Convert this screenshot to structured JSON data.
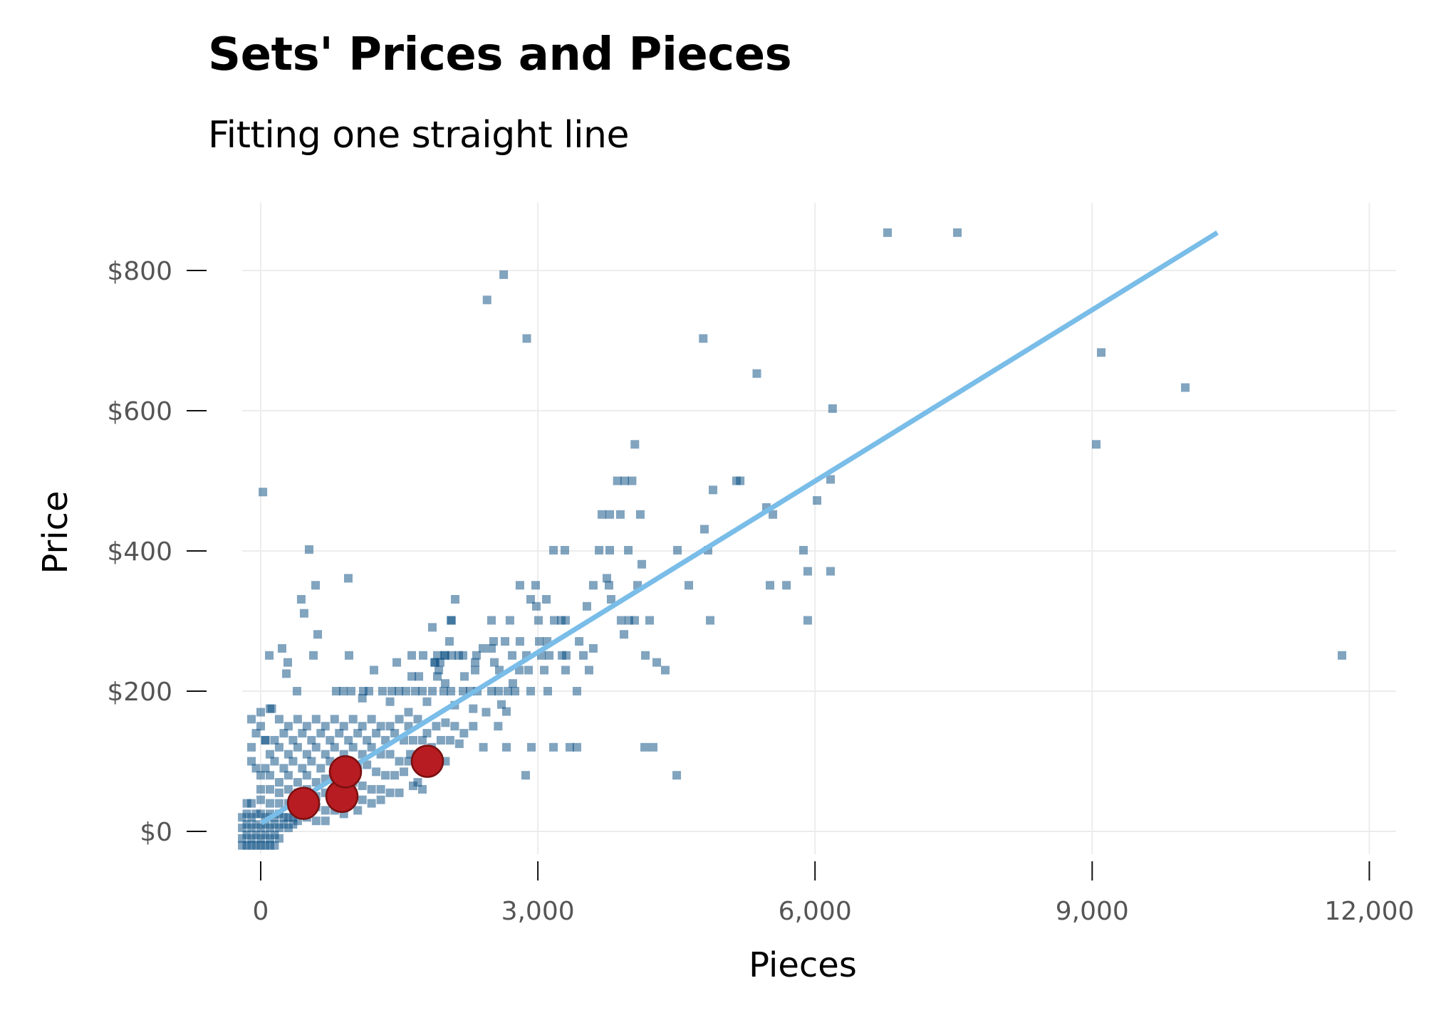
{
  "title": "Sets' Prices and Pieces",
  "subtitle": "Fitting one straight line",
  "colors": {
    "points": "#03497f",
    "fit_line": "#79bde8",
    "highlight_fill": "#b71c22",
    "highlight_stroke": "#7a1010",
    "grid": "#ececec",
    "tick_text": "#555555"
  },
  "chart_data": {
    "type": "scatter",
    "title": "Sets' Prices and Pieces",
    "subtitle": "Fitting one straight line",
    "xlabel": "Pieces",
    "ylabel": "Price",
    "xlim": [
      -200,
      12500
    ],
    "ylim": [
      -40,
      900
    ],
    "grid": true,
    "x_ticks": [
      0,
      3000,
      6000,
      9000,
      12000
    ],
    "x_tick_labels": [
      "0",
      "3,000",
      "6,000",
      "9,000",
      "12,000"
    ],
    "y_ticks": [
      0,
      200,
      400,
      600,
      800
    ],
    "y_tick_labels": [
      "$0",
      "$200",
      "$400",
      "$600",
      "$800"
    ],
    "fit_line": {
      "name": "linear fit",
      "x": [
        8,
        10355
      ],
      "y": [
        12,
        854
      ]
    },
    "highlighted": {
      "name": "highlighted sets",
      "points": [
        [
          463,
          40
        ],
        [
          879,
          50
        ],
        [
          917,
          85
        ],
        [
          1804,
          100
        ]
      ]
    },
    "sets": {
      "name": "sets",
      "points": [
        [
          6785,
          854
        ],
        [
          7541,
          854
        ],
        [
          2630,
          794
        ],
        [
          2450,
          758
        ],
        [
          2880,
          703
        ],
        [
          4790,
          703
        ],
        [
          5370,
          653
        ],
        [
          6190,
          603
        ],
        [
          9098,
          683
        ],
        [
          10008,
          633
        ],
        [
          9044,
          552
        ],
        [
          11704,
          251
        ],
        [
          4050,
          552
        ],
        [
          3860,
          500
        ],
        [
          3940,
          500
        ],
        [
          4020,
          500
        ],
        [
          5150,
          500
        ],
        [
          5190,
          500
        ],
        [
          6168,
          502
        ],
        [
          4896,
          487
        ],
        [
          6022,
          472
        ],
        [
          24,
          484
        ],
        [
          3693,
          452
        ],
        [
          3778,
          452
        ],
        [
          3893,
          452
        ],
        [
          4109,
          452
        ],
        [
          5474,
          462
        ],
        [
          5544,
          452
        ],
        [
          4803,
          431
        ],
        [
          3169,
          401
        ],
        [
          3292,
          401
        ],
        [
          3663,
          401
        ],
        [
          3778,
          401
        ],
        [
          3979,
          401
        ],
        [
          4511,
          401
        ],
        [
          4842,
          401
        ],
        [
          5875,
          401
        ],
        [
          524,
          402
        ],
        [
          4125,
          381
        ],
        [
          5921,
          371
        ],
        [
          6168,
          371
        ],
        [
          3747,
          361
        ],
        [
          948,
          361
        ],
        [
          2806,
          351
        ],
        [
          2976,
          351
        ],
        [
          3600,
          351
        ],
        [
          3770,
          351
        ],
        [
          4079,
          351
        ],
        [
          4634,
          351
        ],
        [
          5513,
          351
        ],
        [
          5691,
          351
        ],
        [
          594,
          351
        ],
        [
          2105,
          331
        ],
        [
          2922,
          331
        ],
        [
          3092,
          331
        ],
        [
          3793,
          331
        ],
        [
          439,
          331
        ],
        [
          2984,
          321
        ],
        [
          3531,
          321
        ],
        [
          470,
          311
        ],
        [
          1858,
          291
        ],
        [
          2066,
          301
        ],
        [
          2498,
          301
        ],
        [
          2698,
          301
        ],
        [
          3007,
          301
        ],
        [
          3177,
          301
        ],
        [
          3254,
          301
        ],
        [
          3300,
          301
        ],
        [
          3901,
          301
        ],
        [
          3986,
          301
        ],
        [
          4048,
          301
        ],
        [
          4210,
          301
        ],
        [
          4865,
          301
        ],
        [
          5921,
          301
        ],
        [
          2059,
          301
        ],
        [
          3932,
          281
        ],
        [
          617,
          281
        ],
        [
          2043,
          271
        ],
        [
          2521,
          271
        ],
        [
          2645,
          271
        ],
        [
          2806,
          271
        ],
        [
          3015,
          271
        ],
        [
          3100,
          271
        ],
        [
          3447,
          271
        ],
        [
          3600,
          261
        ],
        [
          2405,
          261
        ],
        [
          2498,
          261
        ],
        [
          231,
          261
        ],
        [
          1912,
          251
        ],
        [
          1989,
          251
        ],
        [
          2066,
          251
        ],
        [
          2143,
          251
        ],
        [
          2190,
          251
        ],
        [
          2336,
          251
        ],
        [
          2722,
          251
        ],
        [
          2876,
          251
        ],
        [
          3038,
          251
        ],
        [
          3123,
          251
        ],
        [
          3262,
          251
        ],
        [
          3308,
          251
        ],
        [
          3493,
          251
        ],
        [
          4164,
          251
        ],
        [
          93,
          251
        ],
        [
          571,
          251
        ],
        [
          956,
          251
        ],
        [
          1635,
          251
        ],
        [
          1758,
          251
        ],
        [
          1997,
          251
        ],
        [
          1881,
          241
        ],
        [
          1943,
          241
        ],
        [
          2321,
          241
        ],
        [
          2529,
          241
        ],
        [
          4287,
          241
        ],
        [
          293,
          241
        ],
        [
          1473,
          241
        ],
        [
          1889,
          241
        ],
        [
          1928,
          230
        ],
        [
          2321,
          230
        ],
        [
          2583,
          230
        ],
        [
          2799,
          230
        ],
        [
          2899,
          230
        ],
        [
          3069,
          230
        ],
        [
          3300,
          230
        ],
        [
          3554,
          230
        ],
        [
          4379,
          230
        ],
        [
          1226,
          230
        ],
        [
          278,
          225
        ],
        [
          1635,
          221
        ],
        [
          1712,
          221
        ],
        [
          1912,
          221
        ],
        [
          2205,
          221
        ],
        [
          1997,
          211
        ],
        [
          2729,
          211
        ],
        [
          393,
          200
        ],
        [
          817,
          200
        ],
        [
          894,
          200
        ],
        [
          979,
          200
        ],
        [
          1110,
          200
        ],
        [
          1172,
          200
        ],
        [
          1318,
          200
        ],
        [
          1419,
          200
        ],
        [
          1496,
          200
        ],
        [
          1573,
          200
        ],
        [
          1673,
          200
        ],
        [
          1750,
          200
        ],
        [
          1858,
          200
        ],
        [
          1981,
          200
        ],
        [
          2059,
          200
        ],
        [
          2190,
          200
        ],
        [
          2267,
          200
        ],
        [
          2344,
          200
        ],
        [
          2498,
          200
        ],
        [
          2575,
          200
        ],
        [
          2675,
          200
        ],
        [
          2753,
          200
        ],
        [
          2922,
          200
        ],
        [
          3107,
          200
        ],
        [
          3423,
          200
        ],
        [
          2606,
          181
        ],
        [
          2660,
          171
        ],
        [
          1100,
          190
        ],
        [
          1400,
          185
        ],
        [
          1800,
          185
        ],
        [
          2100,
          180
        ],
        [
          2300,
          175
        ],
        [
          1600,
          170
        ],
        [
          2660,
          120
        ],
        [
          2930,
          120
        ],
        [
          3169,
          120
        ],
        [
          3346,
          120
        ],
        [
          3423,
          120
        ],
        [
          4156,
          120
        ],
        [
          4248,
          120
        ],
        [
          2868,
          80
        ],
        [
          4503,
          80
        ],
        [
          1860,
          90
        ],
        [
          1620,
          110
        ],
        [
          2410,
          120
        ],
        [
          2570,
          150
        ],
        [
          2440,
          170
        ],
        [
          100,
          175
        ],
        [
          120,
          175
        ],
        [
          200,
          160
        ],
        [
          300,
          150
        ],
        [
          400,
          160
        ],
        [
          500,
          150
        ],
        [
          600,
          160
        ],
        [
          700,
          150
        ],
        [
          800,
          160
        ],
        [
          900,
          150
        ],
        [
          1000,
          160
        ],
        [
          1100,
          150
        ],
        [
          1200,
          160
        ],
        [
          1300,
          150
        ],
        [
          1400,
          150
        ],
        [
          1500,
          160
        ],
        [
          1600,
          150
        ],
        [
          1700,
          160
        ],
        [
          1800,
          140
        ],
        [
          1900,
          150
        ],
        [
          2000,
          155
        ],
        [
          2100,
          150
        ],
        [
          2200,
          140
        ],
        [
          2300,
          150
        ],
        [
          50,
          130
        ],
        [
          150,
          130
        ],
        [
          250,
          140
        ],
        [
          350,
          130
        ],
        [
          450,
          140
        ],
        [
          550,
          130
        ],
        [
          650,
          140
        ],
        [
          750,
          130
        ],
        [
          850,
          140
        ],
        [
          950,
          130
        ],
        [
          1050,
          140
        ],
        [
          1150,
          130
        ],
        [
          1250,
          140
        ],
        [
          1350,
          130
        ],
        [
          1450,
          140
        ],
        [
          1550,
          130
        ],
        [
          1650,
          130
        ],
        [
          1750,
          130
        ],
        [
          1850,
          120
        ],
        [
          1950,
          130
        ],
        [
          2050,
          130
        ],
        [
          2150,
          125
        ],
        [
          100,
          110
        ],
        [
          200,
          120
        ],
        [
          300,
          110
        ],
        [
          400,
          120
        ],
        [
          500,
          110
        ],
        [
          600,
          120
        ],
        [
          700,
          110
        ],
        [
          800,
          120
        ],
        [
          900,
          110
        ],
        [
          1000,
          120
        ],
        [
          1100,
          110
        ],
        [
          1200,
          120
        ],
        [
          1300,
          110
        ],
        [
          1400,
          110
        ],
        [
          1500,
          100
        ],
        [
          1600,
          100
        ],
        [
          1700,
          100
        ],
        [
          1800,
          110
        ],
        [
          1900,
          105
        ],
        [
          2000,
          100
        ],
        [
          50,
          90
        ],
        [
          150,
          100
        ],
        [
          250,
          90
        ],
        [
          350,
          100
        ],
        [
          450,
          90
        ],
        [
          550,
          100
        ],
        [
          650,
          90
        ],
        [
          750,
          100
        ],
        [
          850,
          90
        ],
        [
          950,
          100
        ],
        [
          1050,
          90
        ],
        [
          1150,
          95
        ],
        [
          1250,
          85
        ],
        [
          1350,
          80
        ],
        [
          1450,
          80
        ],
        [
          1550,
          85
        ],
        [
          1650,
          65
        ],
        [
          1750,
          60
        ],
        [
          1700,
          70
        ],
        [
          0,
          80
        ],
        [
          100,
          80
        ],
        [
          200,
          70
        ],
        [
          300,
          80
        ],
        [
          400,
          70
        ],
        [
          500,
          80
        ],
        [
          600,
          70
        ],
        [
          700,
          75
        ],
        [
          800,
          70
        ],
        [
          900,
          70
        ],
        [
          1000,
          70
        ],
        [
          1100,
          65
        ],
        [
          1200,
          60
        ],
        [
          1300,
          60
        ],
        [
          1400,
          55
        ],
        [
          1500,
          55
        ],
        [
          0,
          60
        ],
        [
          100,
          60
        ],
        [
          200,
          55
        ],
        [
          300,
          60
        ],
        [
          400,
          55
        ],
        [
          500,
          60
        ],
        [
          600,
          50
        ],
        [
          700,
          55
        ],
        [
          800,
          50
        ],
        [
          900,
          45
        ],
        [
          1000,
          50
        ],
        [
          1100,
          45
        ],
        [
          1200,
          40
        ],
        [
          1300,
          45
        ],
        [
          1050,
          30
        ],
        [
          -150,
          40
        ],
        [
          -100,
          40
        ],
        [
          0,
          45
        ],
        [
          100,
          40
        ],
        [
          200,
          40
        ],
        [
          300,
          40
        ],
        [
          400,
          35
        ],
        [
          500,
          40
        ],
        [
          600,
          35
        ],
        [
          700,
          30
        ],
        [
          800,
          30
        ],
        [
          900,
          25
        ],
        [
          -200,
          20
        ],
        [
          -150,
          25
        ],
        [
          -100,
          20
        ],
        [
          -50,
          25
        ],
        [
          0,
          25
        ],
        [
          50,
          20
        ],
        [
          100,
          25
        ],
        [
          150,
          20
        ],
        [
          200,
          25
        ],
        [
          250,
          20
        ],
        [
          300,
          20
        ],
        [
          350,
          20
        ],
        [
          400,
          15
        ],
        [
          500,
          20
        ],
        [
          600,
          15
        ],
        [
          700,
          15
        ],
        [
          -200,
          5
        ],
        [
          -150,
          10
        ],
        [
          -100,
          5
        ],
        [
          -50,
          10
        ],
        [
          0,
          5
        ],
        [
          50,
          10
        ],
        [
          100,
          5
        ],
        [
          150,
          10
        ],
        [
          200,
          5
        ],
        [
          250,
          10
        ],
        [
          300,
          5
        ],
        [
          350,
          10
        ],
        [
          -200,
          -10
        ],
        [
          -150,
          -5
        ],
        [
          -100,
          -10
        ],
        [
          -50,
          -5
        ],
        [
          0,
          -10
        ],
        [
          50,
          -5
        ],
        [
          100,
          -10
        ],
        [
          150,
          -5
        ],
        [
          200,
          -10
        ],
        [
          -200,
          -20
        ],
        [
          -150,
          -20
        ],
        [
          -100,
          -20
        ],
        [
          -50,
          -20
        ],
        [
          0,
          -20
        ],
        [
          50,
          -20
        ],
        [
          100,
          -20
        ],
        [
          150,
          -20
        ],
        [
          -100,
          100
        ],
        [
          -50,
          90
        ],
        [
          -100,
          120
        ],
        [
          -50,
          140
        ],
        [
          0,
          150
        ],
        [
          -100,
          160
        ],
        [
          0,
          170
        ],
        [
          50,
          130
        ]
      ]
    }
  }
}
